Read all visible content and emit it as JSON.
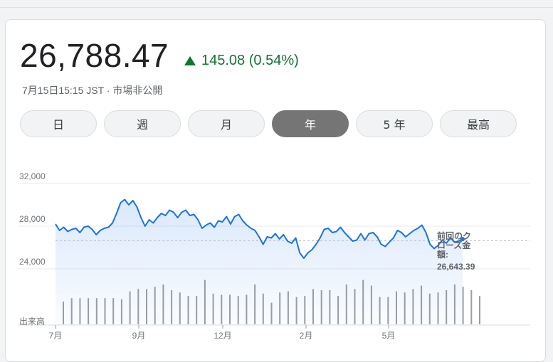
{
  "quote": {
    "price": "26,788.47",
    "change": "145.08 (0.54%)",
    "timestamp": "7月15日15:15 JST · 市場非公開"
  },
  "ranges": [
    {
      "label": "日",
      "active": false
    },
    {
      "label": "週",
      "active": false
    },
    {
      "label": "月",
      "active": false
    },
    {
      "label": "年",
      "active": true
    },
    {
      "label": "5 年",
      "active": false
    },
    {
      "label": "最高",
      "active": false
    }
  ],
  "colors": {
    "up": "#137333",
    "line": "#1a73e8",
    "volume": "#9e9e9e"
  },
  "chart_data": {
    "type": "line",
    "y_ticks": [
      "32,000",
      "28,000",
      "24,000"
    ],
    "y_tick_values": [
      32000,
      28000,
      24000
    ],
    "ylim": [
      22600,
      32800
    ],
    "x_ticks": [
      "7月",
      "9月",
      "12月",
      "2月",
      "5月"
    ],
    "volume_label": "出来高",
    "prev_close_label_lines": [
      "前回のク",
      "ローズ金",
      "額:"
    ],
    "prev_close_value": "26,643.39",
    "prev_close": 26643.39,
    "series": [
      {
        "values": [
          28200,
          27600,
          27900,
          27500,
          27700,
          27800,
          27400,
          27900,
          28000,
          27700,
          27200,
          27600,
          27800,
          27900,
          28300,
          29200,
          30200,
          30500,
          30000,
          30400,
          29800,
          28800,
          28000,
          28600,
          28300,
          28800,
          29200,
          29000,
          29500,
          29300,
          28800,
          29300,
          29500,
          29000,
          29100,
          28600,
          27800,
          28100,
          28300,
          27900,
          28500,
          28400,
          28900,
          28200,
          28900,
          29100,
          28500,
          28100,
          27800,
          27600,
          27000,
          26300,
          27000,
          26900,
          27300,
          26800,
          27200,
          26600,
          26400,
          26900,
          25500,
          25000,
          25500,
          25800,
          26300,
          26900,
          27700,
          27800,
          27400,
          27500,
          27900,
          27400,
          27000,
          26600,
          26700,
          27300,
          26700,
          27300,
          27400,
          27000,
          26300,
          26100,
          26500,
          26900,
          27600,
          27400,
          27000,
          27300,
          27600,
          27800,
          28100,
          27400,
          26300,
          25900,
          26200,
          26700,
          26400,
          26900,
          26500,
          26600,
          26788
        ]
      }
    ],
    "volume": [
      1.0,
      1.15,
      1.15,
      1.15,
      1.15,
      1.15,
      1.15,
      1.1,
      1.45,
      1.55,
      1.55,
      1.65,
      1.75,
      1.5,
      1.4,
      1.25,
      1.25,
      1.95,
      1.35,
      1.3,
      1.3,
      1.25,
      1.3,
      1.75,
      1.35,
      0.95,
      1.4,
      1.45,
      1.2,
      1.25,
      1.55,
      1.5,
      1.5,
      1.25,
      1.75,
      1.55,
      1.95,
      1.7,
      1.2,
      1.2,
      1.45,
      1.4,
      1.55,
      1.7,
      1.35,
      1.4,
      1.5,
      1.75,
      1.65,
      1.5,
      1.25
    ]
  }
}
